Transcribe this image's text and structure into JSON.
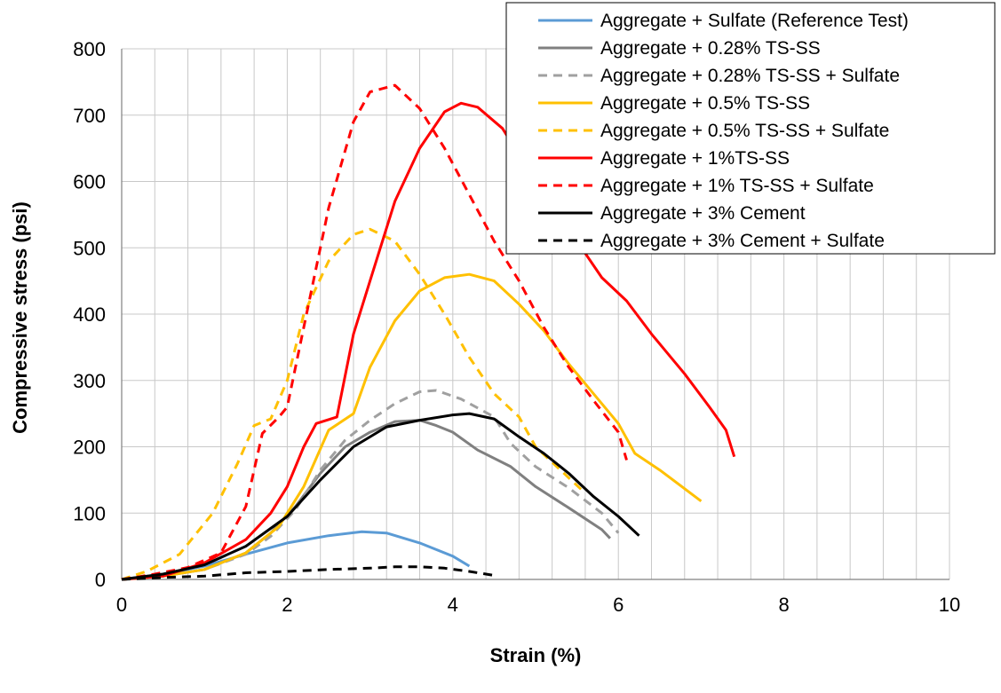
{
  "chart_data": {
    "type": "line",
    "title": "",
    "xlabel": "Strain (%)",
    "ylabel": "Compressive stress (psi)",
    "xlim": [
      0,
      10
    ],
    "ylim": [
      0,
      800
    ],
    "x_ticks": [
      0,
      2,
      4,
      6,
      8,
      10
    ],
    "y_ticks": [
      0,
      100,
      200,
      300,
      400,
      500,
      600,
      700,
      800
    ],
    "grid": true,
    "legend_position": "top-right",
    "series": [
      {
        "name": "Aggregate + Sulfate (Reference Test)",
        "color": "#5b9bd5",
        "dash": "solid",
        "x": [
          0,
          0.5,
          1.0,
          1.5,
          2.0,
          2.5,
          2.9,
          3.2,
          3.6,
          4.0,
          4.2
        ],
        "y": [
          0,
          8,
          20,
          38,
          55,
          66,
          72,
          70,
          55,
          35,
          20
        ]
      },
      {
        "name": "Aggregate + 0.28% TS-SS",
        "color": "#808080",
        "dash": "solid",
        "x": [
          0,
          0.5,
          1.0,
          1.5,
          1.8,
          2.1,
          2.4,
          2.7,
          3.0,
          3.3,
          3.6,
          3.8,
          4.0,
          4.3,
          4.7,
          5.0,
          5.4,
          5.8,
          5.9
        ],
        "y": [
          0,
          5,
          15,
          40,
          70,
          110,
          160,
          200,
          222,
          238,
          240,
          232,
          222,
          195,
          170,
          140,
          108,
          75,
          62
        ]
      },
      {
        "name": "Aggregate + 0.28% TS-SS + Sulfate",
        "color": "#a0a0a0",
        "dash": "dashed",
        "x": [
          0,
          0.5,
          1.0,
          1.5,
          1.8,
          2.1,
          2.4,
          2.7,
          3.0,
          3.3,
          3.6,
          3.8,
          4.1,
          4.5,
          4.7,
          5.0,
          5.4,
          5.8,
          6.0
        ],
        "y": [
          0,
          5,
          15,
          38,
          65,
          105,
          165,
          210,
          240,
          265,
          283,
          285,
          272,
          245,
          205,
          170,
          138,
          100,
          70
        ]
      },
      {
        "name": "Aggregate + 0.5% TS-SS",
        "color": "#ffc000",
        "dash": "solid",
        "x": [
          0,
          0.5,
          1.0,
          1.5,
          1.9,
          2.2,
          2.5,
          2.8,
          3.0,
          3.3,
          3.6,
          3.9,
          4.2,
          4.5,
          4.8,
          5.1,
          5.4,
          5.7,
          6.0,
          6.2,
          6.5,
          7.0
        ],
        "y": [
          0,
          5,
          15,
          40,
          80,
          140,
          225,
          250,
          320,
          390,
          435,
          455,
          460,
          450,
          415,
          375,
          325,
          280,
          235,
          190,
          165,
          118
        ]
      },
      {
        "name": "Aggregate + 0.5% TS-SS + Sulfate",
        "color": "#ffc000",
        "dash": "dashed",
        "x": [
          0,
          0.3,
          0.7,
          1.1,
          1.4,
          1.6,
          1.8,
          2.0,
          2.2,
          2.5,
          2.8,
          3.0,
          3.3,
          3.6,
          3.9,
          4.2,
          4.5,
          4.8,
          5.0,
          5.3,
          5.6
        ],
        "y": [
          0,
          12,
          38,
          100,
          175,
          232,
          242,
          300,
          400,
          480,
          520,
          528,
          510,
          460,
          400,
          335,
          280,
          245,
          200,
          165,
          130
        ]
      },
      {
        "name": "Aggregate + 1%TS-SS",
        "color": "#ff0000",
        "dash": "solid",
        "x": [
          0,
          0.5,
          1.0,
          1.5,
          1.8,
          2.0,
          2.2,
          2.35,
          2.6,
          2.8,
          3.0,
          3.3,
          3.6,
          3.9,
          4.1,
          4.3,
          4.6,
          4.9,
          5.2,
          5.5,
          5.8,
          6.1,
          6.4,
          6.8,
          7.1,
          7.3,
          7.4
        ],
        "y": [
          0,
          5,
          25,
          60,
          100,
          140,
          200,
          235,
          245,
          370,
          450,
          570,
          650,
          705,
          718,
          712,
          680,
          620,
          560,
          510,
          455,
          420,
          370,
          310,
          260,
          225,
          185
        ]
      },
      {
        "name": "Aggregate + 1% TS-SS + Sulfate",
        "color": "#ff0000",
        "dash": "dashed",
        "x": [
          0,
          0.4,
          0.8,
          1.2,
          1.5,
          1.7,
          1.9,
          2.0,
          2.2,
          2.5,
          2.8,
          3.0,
          3.3,
          3.6,
          3.9,
          4.2,
          4.5,
          4.8,
          5.1,
          5.4,
          5.7,
          6.0,
          6.1
        ],
        "y": [
          0,
          8,
          18,
          40,
          110,
          220,
          245,
          260,
          380,
          560,
          690,
          735,
          745,
          710,
          650,
          580,
          510,
          450,
          380,
          320,
          270,
          222,
          180
        ]
      },
      {
        "name": "Aggregate + 3% Cement",
        "color": "#000000",
        "dash": "solid",
        "x": [
          0,
          0.5,
          1.0,
          1.5,
          2.0,
          2.4,
          2.8,
          3.2,
          3.6,
          4.0,
          4.2,
          4.5,
          4.8,
          5.1,
          5.4,
          5.7,
          6.0,
          6.25
        ],
        "y": [
          0,
          8,
          22,
          50,
          95,
          150,
          200,
          230,
          240,
          248,
          250,
          242,
          215,
          190,
          160,
          125,
          95,
          66
        ]
      },
      {
        "name": "Aggregate + 3% Cement + Sulfate",
        "color": "#000000",
        "dash": "dashed",
        "x": [
          0,
          0.5,
          1.0,
          1.5,
          2.0,
          2.5,
          3.0,
          3.3,
          3.6,
          3.9,
          4.2,
          4.5
        ],
        "y": [
          0,
          3,
          5,
          10,
          12,
          15,
          17,
          19,
          19,
          17,
          12,
          6
        ]
      }
    ]
  }
}
